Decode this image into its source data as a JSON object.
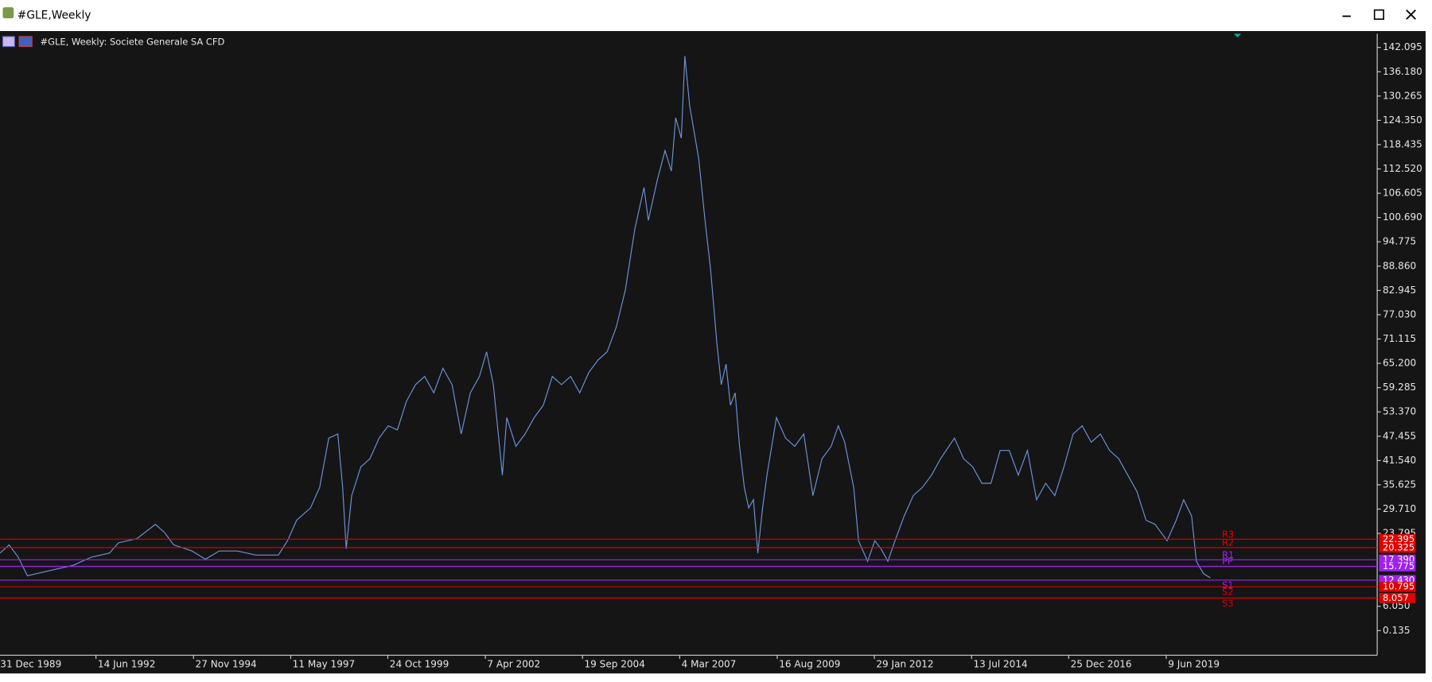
{
  "window": {
    "title": "#GLE,Weekly"
  },
  "chart_data": {
    "type": "line",
    "title": "#GLE, Weekly:  Societe Generale SA CFD",
    "color": "#6f93d6",
    "x": [
      1990.03,
      1990.26,
      1990.49,
      1990.72,
      1990.95,
      1991.41,
      1991.87,
      1992.33,
      1992.79,
      1993.02,
      1993.48,
      1993.95,
      1994.18,
      1994.41,
      1994.87,
      1995.21,
      1995.56,
      1996.02,
      1996.48,
      1997.05,
      1997.28,
      1997.51,
      1997.86,
      1998.09,
      1998.32,
      1998.55,
      1998.67,
      1998.76,
      1998.9,
      1999.13,
      1999.36,
      1999.59,
      1999.82,
      2000.05,
      2000.28,
      2000.51,
      2000.74,
      2000.97,
      2001.2,
      2001.43,
      2001.66,
      2001.89,
      2002.12,
      2002.3,
      2002.47,
      2002.7,
      2002.81,
      2003.04,
      2003.27,
      2003.5,
      2003.73,
      2003.96,
      2004.19,
      2004.42,
      2004.65,
      2004.88,
      2005.11,
      2005.34,
      2005.57,
      2005.8,
      2006.04,
      2006.27,
      2006.38,
      2006.61,
      2006.8,
      2006.96,
      2007.07,
      2007.21,
      2007.3,
      2007.42,
      2007.65,
      2007.81,
      2007.95,
      2008.11,
      2008.22,
      2008.34,
      2008.45,
      2008.57,
      2008.68,
      2008.8,
      2008.91,
      2009.03,
      2009.14,
      2009.26,
      2009.37,
      2009.61,
      2009.84,
      2010.07,
      2010.3,
      2010.53,
      2010.76,
      2010.99,
      2011.17,
      2011.33,
      2011.56,
      2011.68,
      2011.91,
      2012.09,
      2012.25,
      2012.42,
      2012.6,
      2012.83,
      2013.06,
      2013.29,
      2013.52,
      2013.75,
      2014.1,
      2014.33,
      2014.56,
      2014.79,
      2015.02,
      2015.25,
      2015.48,
      2015.71,
      2015.94,
      2016.17,
      2016.4,
      2016.63,
      2016.86,
      2017.09,
      2017.32,
      2017.55,
      2017.78,
      2018.01,
      2018.24,
      2018.47,
      2018.7,
      2018.93,
      2019.16,
      2019.46,
      2019.69,
      2019.88,
      2020.08,
      2020.2,
      2020.38,
      2020.55
    ],
    "values": [
      19,
      21,
      18,
      13.5,
      14,
      15,
      16,
      18,
      19,
      21.5,
      22.5,
      26,
      24,
      21,
      19.5,
      17.5,
      19.5,
      19.5,
      18.5,
      18.5,
      22,
      27,
      30,
      35,
      47,
      48,
      35,
      20,
      33,
      40,
      42,
      47,
      50,
      49,
      56,
      60,
      62,
      58,
      64,
      60,
      48,
      58,
      62,
      68,
      60,
      38,
      52,
      45,
      48,
      52,
      55,
      62,
      60,
      62,
      58,
      63,
      66,
      68,
      74,
      83,
      98,
      108,
      100,
      110,
      117,
      112,
      125,
      120,
      140,
      128,
      115,
      100,
      88,
      70,
      60,
      65,
      55,
      58,
      45,
      35,
      30,
      32,
      19,
      30,
      38,
      52,
      47,
      45,
      48,
      33,
      42,
      45,
      50,
      46,
      35,
      22,
      17,
      22,
      20,
      17,
      22,
      28,
      33,
      35,
      38,
      42,
      47,
      42,
      40,
      36,
      36,
      44,
      44,
      38,
      44,
      32,
      36,
      33,
      40,
      48,
      50,
      46,
      48,
      44,
      42,
      38,
      34,
      27,
      26,
      22,
      27,
      32,
      28,
      17,
      14,
      13
    ],
    "xlim": [
      1990.03,
      2024.76
    ],
    "ylim": [
      -5.86,
      145.43
    ],
    "xticks": [
      {
        "value": 1989.99,
        "label": "31 Dec 1989"
      },
      {
        "value": 1992.45,
        "label": "14 Jun 1992"
      },
      {
        "value": 1994.91,
        "label": "27 Nov 1994"
      },
      {
        "value": 1997.36,
        "label": "11 May 1997"
      },
      {
        "value": 1999.81,
        "label": "24 Oct 1999"
      },
      {
        "value": 2002.27,
        "label": "7 Apr 2002"
      },
      {
        "value": 2004.72,
        "label": "19 Sep 2004"
      },
      {
        "value": 2007.17,
        "label": "4 Mar 2007"
      },
      {
        "value": 2009.63,
        "label": "16 Aug 2009"
      },
      {
        "value": 2012.08,
        "label": "29 Jan 2012"
      },
      {
        "value": 2014.53,
        "label": "13 Jul 2014"
      },
      {
        "value": 2016.98,
        "label": "25 Dec 2016"
      },
      {
        "value": 2019.44,
        "label": "9 Jun 2019"
      }
    ],
    "yticks": [
      {
        "value": 142.095,
        "label": "142.095"
      },
      {
        "value": 136.18,
        "label": "136.180"
      },
      {
        "value": 130.265,
        "label": "130.265"
      },
      {
        "value": 124.35,
        "label": "124.350"
      },
      {
        "value": 118.435,
        "label": "118.435"
      },
      {
        "value": 112.52,
        "label": "112.520"
      },
      {
        "value": 106.605,
        "label": "106.605"
      },
      {
        "value": 100.69,
        "label": "100.690"
      },
      {
        "value": 94.775,
        "label": "94.775"
      },
      {
        "value": 88.86,
        "label": "88.860"
      },
      {
        "value": 82.945,
        "label": "82.945"
      },
      {
        "value": 77.03,
        "label": "77.030"
      },
      {
        "value": 71.115,
        "label": "71.115"
      },
      {
        "value": 65.2,
        "label": "65.200"
      },
      {
        "value": 59.285,
        "label": "59.285"
      },
      {
        "value": 53.37,
        "label": "53.370"
      },
      {
        "value": 47.455,
        "label": "47.455"
      },
      {
        "value": 41.54,
        "label": "41.540"
      },
      {
        "value": 35.625,
        "label": "35.625"
      },
      {
        "value": 29.71,
        "label": "29.710"
      },
      {
        "value": 23.795,
        "label": "23.795"
      },
      {
        "value": 6.05,
        "label": "6.050"
      },
      {
        "value": 0.135,
        "label": "0.135"
      }
    ],
    "levels": {
      "names": [
        "R3",
        "R2",
        "R1",
        "PP",
        "S1",
        "S2",
        "S3"
      ],
      "values": [
        22.395,
        20.325,
        17.39,
        15.775,
        12.43,
        10.795,
        8.057
      ],
      "value_labels": [
        "22.395",
        "20.325",
        "17.390",
        "15.775",
        "12.430",
        "10.795",
        "8.057"
      ],
      "colors": [
        "#e00000",
        "#e00000",
        "#a020f0",
        "#a020f0",
        "#a020f0",
        "#e00000",
        "#e00000"
      ]
    }
  }
}
